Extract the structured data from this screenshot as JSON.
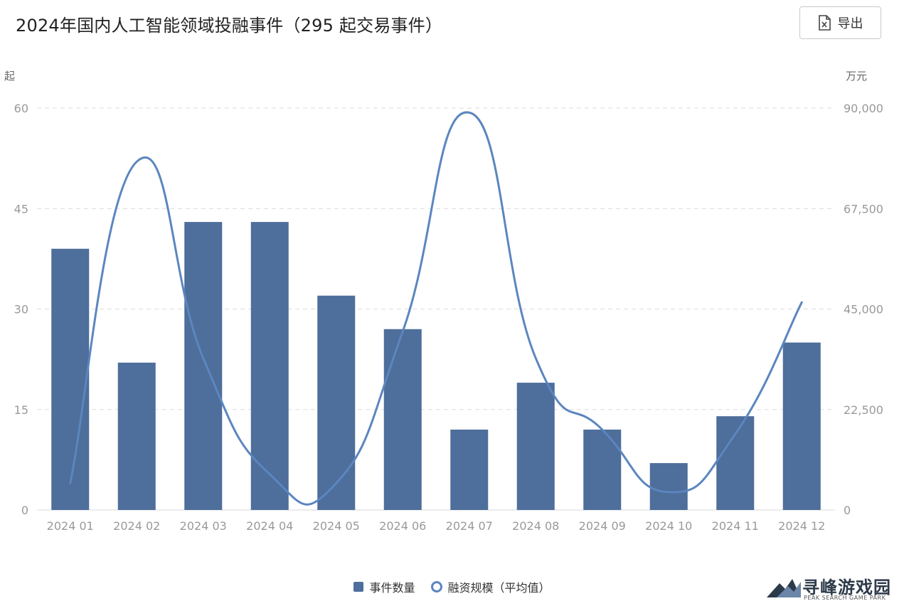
{
  "header": {
    "title": "2024年国内人工智能领域投融事件（295 起交易事件）",
    "export_label": "导出",
    "export_icon": "excel-file-icon"
  },
  "colors": {
    "bar": "#4e6e9b",
    "line": "#5b86bf",
    "grid": "#dcdcdc",
    "axis_text": "#999999"
  },
  "watermark": {
    "text": "寻峰游戏园",
    "subtext": "PEAK SEARCH GAME PARK"
  },
  "chart_data": {
    "type": "bar",
    "categories": [
      "2024 01",
      "2024 02",
      "2024 03",
      "2024 04",
      "2024 05",
      "2024 06",
      "2024 07",
      "2024 08",
      "2024 09",
      "2024 10",
      "2024 11",
      "2024 12"
    ],
    "series": [
      {
        "name": "事件数量",
        "type": "bar",
        "axis": "left",
        "values": [
          39,
          22,
          43,
          43,
          32,
          27,
          12,
          19,
          12,
          7,
          14,
          25
        ]
      },
      {
        "name": "融资规模（平均值）",
        "type": "line",
        "smooth": true,
        "axis": "right",
        "values": [
          6000,
          78000,
          34000,
          8000,
          6000,
          40000,
          89000,
          34000,
          18000,
          4000,
          17000,
          46500
        ]
      }
    ],
    "y_left": {
      "unit": "起",
      "ticks": [
        "0",
        "15",
        "30",
        "45",
        "60"
      ],
      "min": 0,
      "max": 60
    },
    "y_right": {
      "unit": "万元",
      "ticks": [
        "0",
        "22,500",
        "45,000",
        "67,500",
        "90,000"
      ],
      "min": 0,
      "max": 90000
    },
    "grid": true,
    "legend_position": "bottom-center"
  }
}
